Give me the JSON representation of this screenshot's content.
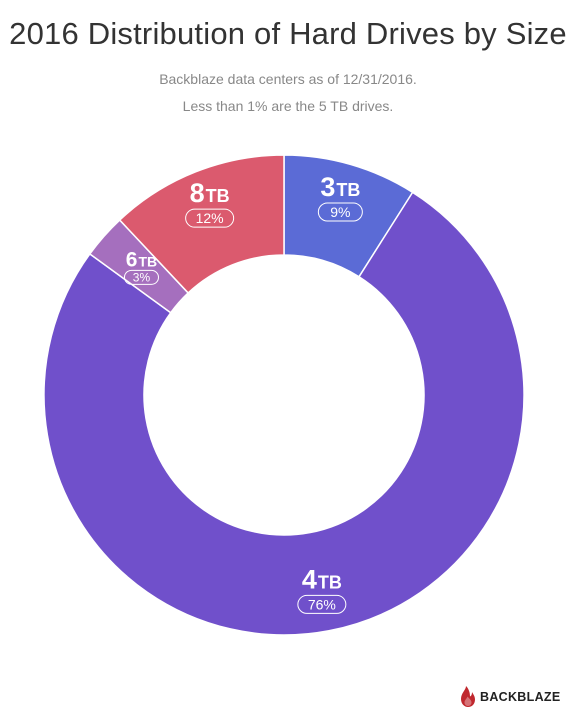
{
  "header": {
    "title": "2016 Distribution of Hard Drives by Size",
    "subtitle_line1": "Backblaze data centers as of 12/31/2016.",
    "subtitle_line2": "Less than 1% are the 5 TB drives."
  },
  "brand": {
    "name": "BACKBLAZE",
    "logo_icon": "flame-icon",
    "logo_color": "#c0282e"
  },
  "chart_data": {
    "type": "pie",
    "title": "2016 Distribution of Hard Drives by Size",
    "subtitle": "Backblaze data centers as of 12/31/2016. Less than 1% are the 5 TB drives.",
    "slices": [
      {
        "size": "3",
        "unit": "TB",
        "percent_label": "9%",
        "value": 9,
        "color": "#5b6bd6"
      },
      {
        "size": "4",
        "unit": "TB",
        "percent_label": "76%",
        "value": 76,
        "color": "#7050cb"
      },
      {
        "size": "6",
        "unit": "TB",
        "percent_label": "3%",
        "value": 3,
        "color": "#a56fbe"
      },
      {
        "size": "8",
        "unit": "TB",
        "percent_label": "12%",
        "value": 12,
        "color": "#db5a6e"
      }
    ]
  }
}
